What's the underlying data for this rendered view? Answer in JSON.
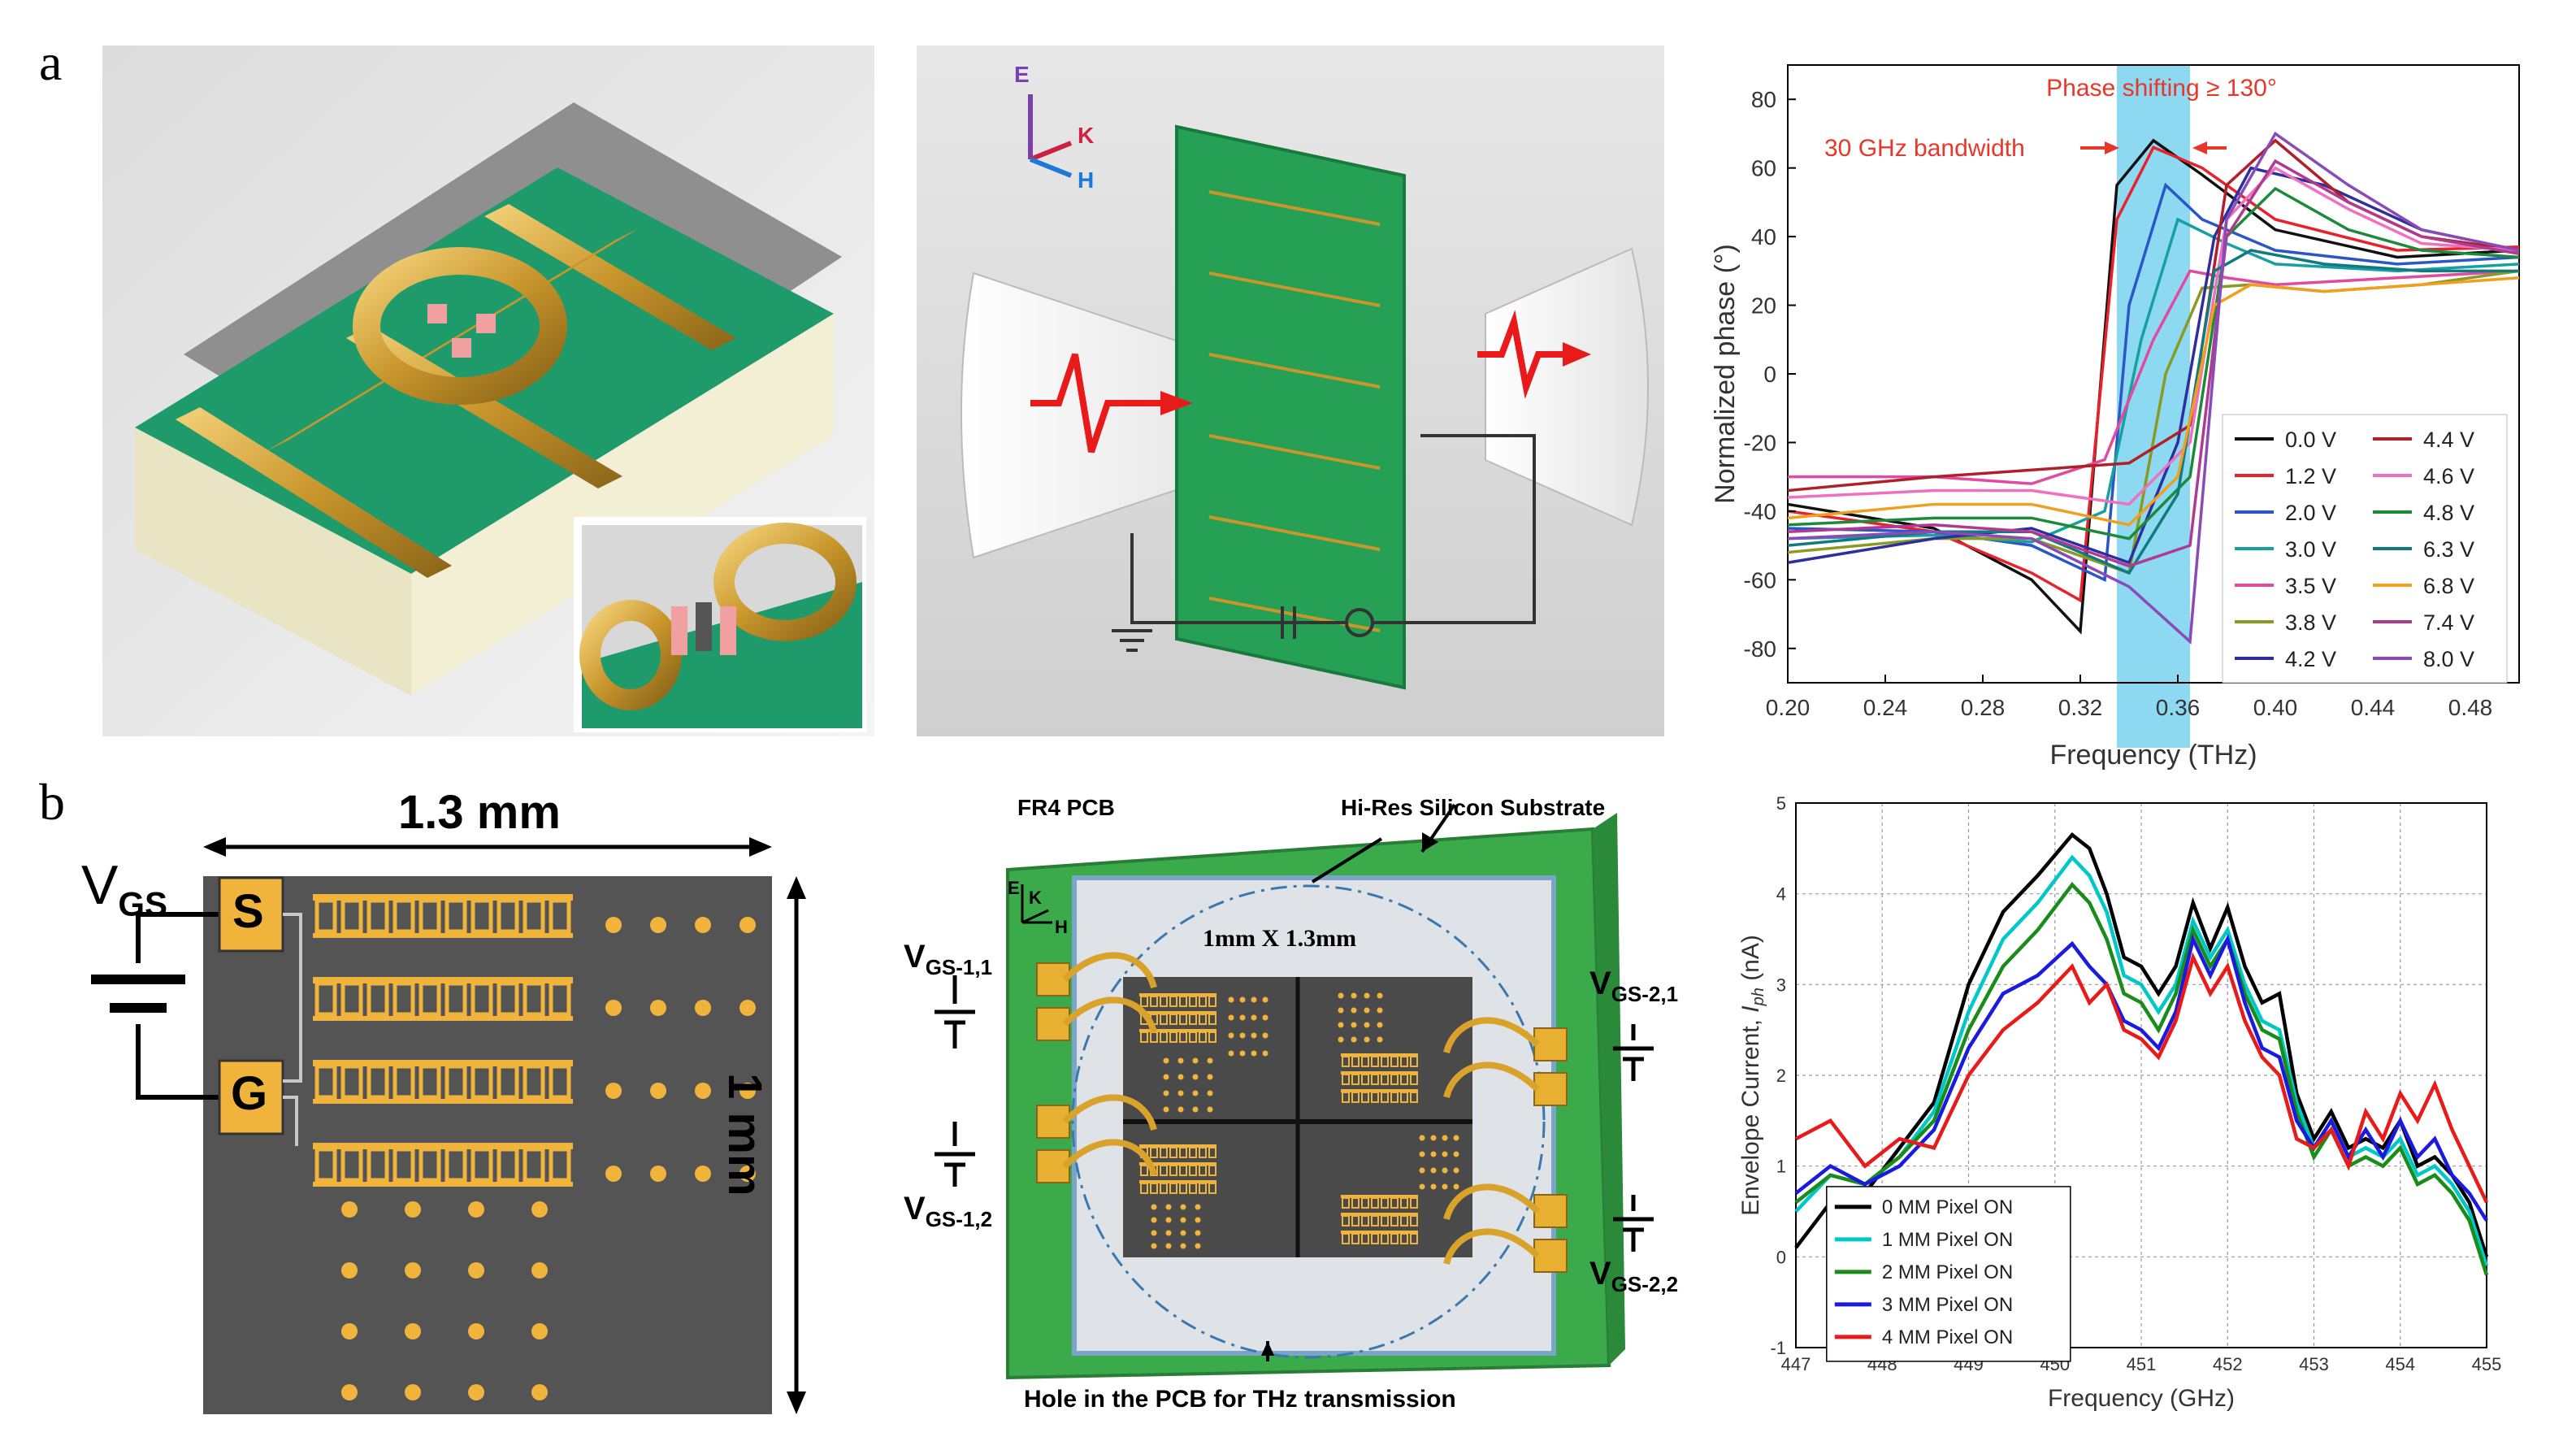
{
  "panel_labels": {
    "a": "a",
    "b": "b"
  },
  "device_a": {
    "axes": {
      "e": "E",
      "k": "K",
      "h": "H"
    }
  },
  "device_b1": {
    "width_label": "1.3 mm",
    "height_label": "1 mm",
    "vgs_main": "V",
    "vgs_sub": "GS",
    "source_label": "S",
    "gate_label": "G"
  },
  "device_b2": {
    "pcb_label": "FR4 PCB",
    "substrate_label": "Hi-Res Silicon Substrate",
    "size_label": "1mm X 1.3mm",
    "hole_label": "Hole in the PCB for THz transmission",
    "axes": {
      "e": "E",
      "k": "K",
      "h": "H"
    },
    "vgs": [
      {
        "main": "V",
        "sub": "GS-1,1"
      },
      {
        "main": "V",
        "sub": "GS-1,2"
      },
      {
        "main": "V",
        "sub": "GS-2,1"
      },
      {
        "main": "V",
        "sub": "GS-2,2"
      }
    ]
  },
  "chart_data": [
    {
      "type": "line",
      "title": "",
      "xlabel": "Frequency (THz)",
      "ylabel": "Normalized phase (°)",
      "xlim": [
        0.2,
        0.5
      ],
      "ylim": [
        -90,
        90
      ],
      "xticks": [
        "0.20",
        "0.24",
        "0.28",
        "0.32",
        "0.36",
        "0.40",
        "0.44",
        "0.48"
      ],
      "yticks": [
        "-80",
        "-60",
        "-40",
        "-20",
        "0",
        "20",
        "40",
        "60",
        "80"
      ],
      "band": [
        0.335,
        0.365
      ],
      "annotations": {
        "phase_shift": "Phase shifting ≥ 130°",
        "bandwidth": "30 GHz bandwidth"
      },
      "legend_position": "bottom-right",
      "series": [
        {
          "name": "0.0 V",
          "color": "#111111",
          "x": [
            0.2,
            0.26,
            0.3,
            0.32,
            0.335,
            0.35,
            0.37,
            0.4,
            0.45,
            0.5
          ],
          "y": [
            -38,
            -45,
            -60,
            -75,
            55,
            68,
            58,
            42,
            34,
            36
          ]
        },
        {
          "name": "1.2 V",
          "color": "#e8222a",
          "x": [
            0.2,
            0.26,
            0.3,
            0.32,
            0.335,
            0.35,
            0.37,
            0.4,
            0.45,
            0.5
          ],
          "y": [
            -40,
            -46,
            -58,
            -66,
            45,
            66,
            60,
            45,
            36,
            37
          ]
        },
        {
          "name": "2.0 V",
          "color": "#2a56c8",
          "x": [
            0.2,
            0.26,
            0.3,
            0.33,
            0.34,
            0.355,
            0.37,
            0.4,
            0.45,
            0.5
          ],
          "y": [
            -45,
            -46,
            -50,
            -60,
            20,
            55,
            45,
            36,
            32,
            34
          ]
        },
        {
          "name": "3.0 V",
          "color": "#16a0a0",
          "x": [
            0.2,
            0.26,
            0.3,
            0.33,
            0.345,
            0.36,
            0.38,
            0.4,
            0.45,
            0.5
          ],
          "y": [
            -48,
            -47,
            -49,
            -40,
            10,
            45,
            38,
            32,
            30,
            32
          ]
        },
        {
          "name": "3.5 V",
          "color": "#e24aa0",
          "x": [
            0.2,
            0.26,
            0.3,
            0.33,
            0.35,
            0.365,
            0.38,
            0.4,
            0.45,
            0.5
          ],
          "y": [
            -30,
            -30,
            -32,
            -25,
            10,
            30,
            28,
            26,
            28,
            30
          ]
        },
        {
          "name": "3.8 V",
          "color": "#8a9a22",
          "x": [
            0.2,
            0.26,
            0.3,
            0.34,
            0.355,
            0.37,
            0.39,
            0.42,
            0.46,
            0.5
          ],
          "y": [
            -52,
            -48,
            -48,
            -58,
            0,
            25,
            26,
            24,
            26,
            30
          ]
        },
        {
          "name": "4.2 V",
          "color": "#2e2e9e",
          "x": [
            0.2,
            0.26,
            0.3,
            0.34,
            0.36,
            0.375,
            0.39,
            0.42,
            0.46,
            0.5
          ],
          "y": [
            -55,
            -48,
            -45,
            -55,
            -20,
            40,
            60,
            55,
            42,
            36
          ]
        },
        {
          "name": "4.4 V",
          "color": "#b0202a",
          "x": [
            0.2,
            0.26,
            0.3,
            0.34,
            0.365,
            0.38,
            0.4,
            0.43,
            0.46,
            0.5
          ],
          "y": [
            -34,
            -30,
            -28,
            -26,
            -15,
            55,
            68,
            50,
            40,
            36
          ]
        },
        {
          "name": "4.6 V",
          "color": "#f070c0",
          "x": [
            0.2,
            0.26,
            0.3,
            0.34,
            0.365,
            0.38,
            0.4,
            0.43,
            0.46,
            0.5
          ],
          "y": [
            -36,
            -34,
            -34,
            -38,
            -20,
            45,
            60,
            48,
            38,
            36
          ]
        },
        {
          "name": "4.8 V",
          "color": "#1c8a3a",
          "x": [
            0.2,
            0.26,
            0.3,
            0.34,
            0.365,
            0.38,
            0.4,
            0.43,
            0.46,
            0.5
          ],
          "y": [
            -44,
            -42,
            -42,
            -48,
            -30,
            40,
            54,
            42,
            36,
            34
          ]
        },
        {
          "name": "6.3 V",
          "color": "#107a80",
          "x": [
            0.2,
            0.26,
            0.3,
            0.34,
            0.36,
            0.375,
            0.39,
            0.42,
            0.46,
            0.5
          ],
          "y": [
            -50,
            -46,
            -46,
            -58,
            -35,
            30,
            36,
            32,
            30,
            30
          ]
        },
        {
          "name": "6.8 V",
          "color": "#f0a020",
          "x": [
            0.2,
            0.26,
            0.3,
            0.34,
            0.36,
            0.375,
            0.39,
            0.42,
            0.46,
            0.5
          ],
          "y": [
            -42,
            -38,
            -38,
            -44,
            -30,
            20,
            26,
            24,
            26,
            28
          ]
        },
        {
          "name": "7.4 V",
          "color": "#b03a90",
          "x": [
            0.2,
            0.26,
            0.3,
            0.34,
            0.365,
            0.38,
            0.4,
            0.43,
            0.46,
            0.5
          ],
          "y": [
            -46,
            -44,
            -46,
            -56,
            -50,
            40,
            62,
            50,
            40,
            35
          ]
        },
        {
          "name": "8.0 V",
          "color": "#8a4ab8",
          "x": [
            0.2,
            0.26,
            0.3,
            0.34,
            0.365,
            0.38,
            0.4,
            0.43,
            0.46,
            0.5
          ],
          "y": [
            -48,
            -46,
            -48,
            -62,
            -78,
            45,
            70,
            55,
            42,
            36
          ]
        }
      ]
    },
    {
      "type": "line",
      "title": "",
      "xlabel": "Frequency (GHz)",
      "ylabel": "Envelope Current, I_ph (nA)",
      "ylabel_main": "Envelope Current, ",
      "ylabel_var": "I",
      "ylabel_sub": "ph",
      "ylabel_unit": " (nA)",
      "xlim": [
        447,
        455
      ],
      "ylim": [
        -1,
        5
      ],
      "xticks": [
        "447",
        "448",
        "449",
        "450",
        "451",
        "452",
        "453",
        "454",
        "455"
      ],
      "yticks": [
        "-1",
        "0",
        "1",
        "2",
        "3",
        "4",
        "5"
      ],
      "legend_position": "bottom-left",
      "grid": true,
      "x": [
        447,
        447.4,
        447.8,
        448.2,
        448.6,
        449.0,
        449.4,
        449.8,
        450.2,
        450.4,
        450.6,
        450.8,
        451.0,
        451.2,
        451.4,
        451.6,
        451.8,
        452.0,
        452.2,
        452.4,
        452.6,
        452.8,
        453.0,
        453.2,
        453.4,
        453.6,
        453.8,
        454.0,
        454.2,
        454.4,
        454.6,
        454.8,
        455.0
      ],
      "series": [
        {
          "name": "0 MM Pixel ON",
          "color": "#000000",
          "values": [
            0.1,
            0.6,
            0.7,
            1.2,
            1.7,
            3.0,
            3.8,
            4.2,
            4.65,
            4.5,
            4.0,
            3.3,
            3.2,
            2.9,
            3.2,
            3.9,
            3.4,
            3.85,
            3.2,
            2.8,
            2.9,
            1.8,
            1.3,
            1.6,
            1.2,
            1.3,
            1.2,
            1.5,
            1.0,
            1.1,
            0.9,
            0.6,
            0.0
          ]
        },
        {
          "name": "1 MM Pixel ON",
          "color": "#00c8c8",
          "values": [
            0.5,
            0.9,
            0.8,
            1.1,
            1.6,
            2.7,
            3.5,
            3.9,
            4.4,
            4.2,
            3.8,
            3.1,
            3.0,
            2.7,
            3.0,
            3.7,
            3.3,
            3.6,
            3.0,
            2.6,
            2.5,
            1.7,
            1.2,
            1.5,
            1.1,
            1.2,
            1.1,
            1.3,
            0.9,
            1.0,
            0.8,
            0.5,
            -0.1
          ]
        },
        {
          "name": "2 MM Pixel ON",
          "color": "#1a8c1a",
          "values": [
            0.6,
            0.9,
            0.8,
            1.1,
            1.5,
            2.5,
            3.2,
            3.6,
            4.1,
            3.9,
            3.5,
            2.9,
            2.8,
            2.5,
            2.9,
            3.6,
            3.2,
            3.5,
            2.9,
            2.5,
            2.4,
            1.6,
            1.1,
            1.4,
            1.0,
            1.1,
            1.0,
            1.2,
            0.8,
            0.9,
            0.7,
            0.4,
            -0.2
          ]
        },
        {
          "name": "3 MM Pixel ON",
          "color": "#1a1ae0",
          "values": [
            0.7,
            1.0,
            0.8,
            1.0,
            1.4,
            2.3,
            2.9,
            3.1,
            3.45,
            3.2,
            3.0,
            2.6,
            2.5,
            2.3,
            2.7,
            3.5,
            3.1,
            3.5,
            2.8,
            2.3,
            2.2,
            1.5,
            1.2,
            1.5,
            1.1,
            1.4,
            1.1,
            1.5,
            1.1,
            1.3,
            0.9,
            0.7,
            0.4
          ]
        },
        {
          "name": "4 MM Pixel ON",
          "color": "#e81a1a",
          "values": [
            1.3,
            1.5,
            1.0,
            1.3,
            1.2,
            2.0,
            2.5,
            2.8,
            3.2,
            2.8,
            3.0,
            2.5,
            2.4,
            2.2,
            2.6,
            3.3,
            2.9,
            3.2,
            2.6,
            2.2,
            2.0,
            1.3,
            1.2,
            1.4,
            1.0,
            1.6,
            1.3,
            1.8,
            1.5,
            1.9,
            1.4,
            1.0,
            0.6
          ]
        }
      ]
    }
  ]
}
